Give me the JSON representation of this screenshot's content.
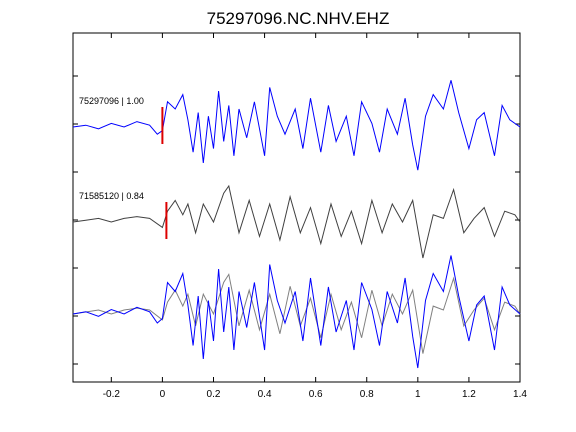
{
  "chart_data": {
    "type": "line",
    "title": "75297096.NC.NHV.EHZ",
    "xlabel": "",
    "ylabel": "",
    "xlim": [
      -0.35,
      1.4
    ],
    "x_ticks": [
      -0.2,
      0,
      0.2,
      0.4,
      0.6,
      0.8,
      1,
      1.2,
      1.4
    ],
    "x_tick_labels": [
      "-0.2",
      "0",
      "0.2",
      "0.4",
      "0.6",
      "0.8",
      "1",
      "1.2",
      "1.4"
    ],
    "grid": false,
    "pick_time": 0.0,
    "colors": {
      "primary": "#0000ff",
      "secondary": "#404040",
      "overlay": "#808080",
      "pick": "#dd0000"
    },
    "traces": [
      {
        "label": "75297096 | 1.00",
        "color": "#0000ff",
        "x": [
          -0.35,
          -0.3,
          -0.25,
          -0.2,
          -0.15,
          -0.1,
          -0.05,
          -0.02,
          0.0,
          0.02,
          0.05,
          0.08,
          0.1,
          0.12,
          0.14,
          0.16,
          0.18,
          0.2,
          0.22,
          0.24,
          0.26,
          0.28,
          0.3,
          0.33,
          0.36,
          0.4,
          0.42,
          0.45,
          0.48,
          0.52,
          0.55,
          0.58,
          0.62,
          0.65,
          0.68,
          0.72,
          0.75,
          0.78,
          0.82,
          0.85,
          0.88,
          0.92,
          0.95,
          0.98,
          1.0,
          1.03,
          1.06,
          1.1,
          1.13,
          1.16,
          1.2,
          1.23,
          1.26,
          1.3,
          1.33,
          1.36,
          1.4
        ],
        "y": [
          0.0,
          0.05,
          -0.05,
          0.1,
          0.0,
          0.15,
          0.05,
          -0.2,
          -0.1,
          0.7,
          0.5,
          0.9,
          0.2,
          -0.7,
          0.4,
          -1.0,
          0.3,
          -0.6,
          1.0,
          -0.4,
          0.6,
          -0.8,
          0.5,
          -0.3,
          0.7,
          -0.8,
          1.1,
          0.3,
          -0.2,
          0.5,
          -0.6,
          0.8,
          -0.7,
          0.6,
          -0.4,
          0.3,
          -0.8,
          0.7,
          0.1,
          -0.7,
          0.5,
          -0.2,
          0.8,
          -0.5,
          -1.2,
          0.3,
          0.9,
          0.5,
          1.3,
          0.4,
          -0.6,
          0.2,
          0.4,
          -0.8,
          0.6,
          0.2,
          0.0
        ]
      },
      {
        "label": "71585120 | 0.84",
        "color": "#404040",
        "x": [
          -0.35,
          -0.3,
          -0.25,
          -0.2,
          -0.15,
          -0.1,
          -0.05,
          0.0,
          0.02,
          0.05,
          0.08,
          0.1,
          0.13,
          0.16,
          0.2,
          0.24,
          0.26,
          0.3,
          0.34,
          0.38,
          0.42,
          0.46,
          0.5,
          0.54,
          0.58,
          0.62,
          0.66,
          0.7,
          0.74,
          0.78,
          0.82,
          0.86,
          0.9,
          0.94,
          0.98,
          1.02,
          1.06,
          1.1,
          1.14,
          1.18,
          1.22,
          1.26,
          1.3,
          1.34,
          1.38,
          1.4
        ],
        "y": [
          0.0,
          0.05,
          0.1,
          0.0,
          0.1,
          0.15,
          0.1,
          -0.15,
          0.3,
          0.6,
          0.2,
          0.5,
          -0.3,
          0.5,
          0.0,
          0.8,
          1.0,
          -0.3,
          0.6,
          -0.4,
          0.5,
          -0.5,
          0.7,
          -0.3,
          0.4,
          -0.6,
          0.5,
          -0.4,
          0.3,
          -0.6,
          0.6,
          -0.3,
          0.5,
          0.0,
          0.6,
          -1.0,
          0.2,
          0.1,
          0.9,
          -0.3,
          0.1,
          0.4,
          -0.4,
          0.3,
          0.2,
          0.0
        ]
      }
    ]
  }
}
